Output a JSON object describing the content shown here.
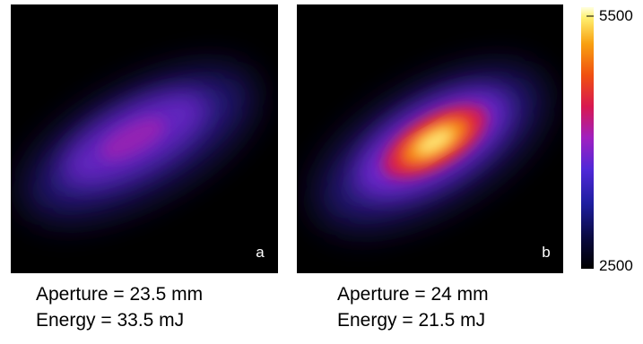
{
  "panels": [
    {
      "label": "a",
      "caption": [
        "Aperture = 23.5 mm",
        "Energy = 33.5 mJ"
      ]
    },
    {
      "label": "b",
      "caption": [
        "Aperture = 24 mm",
        "Energy = 21.5 mJ"
      ]
    }
  ],
  "colorbar": {
    "max": "5500",
    "min": "2500"
  }
}
